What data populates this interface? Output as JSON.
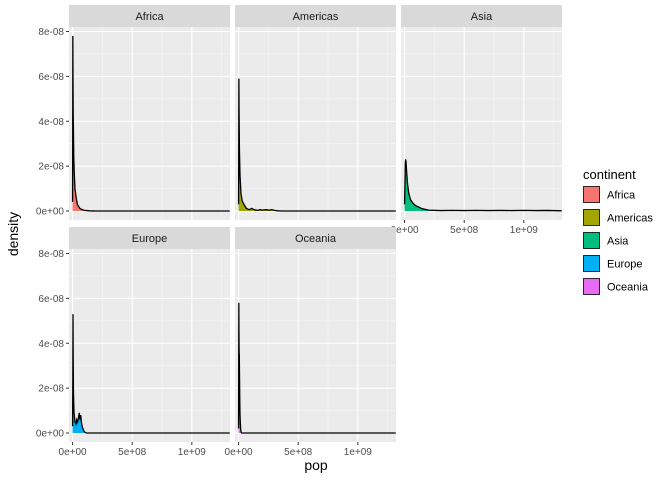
{
  "chart_data": {
    "type": "area",
    "xlabel": "pop",
    "ylabel": "density",
    "x_range": [
      -30000000,
      1320000000
    ],
    "y_range": [
      -4e-09,
      8.2e-08
    ],
    "x_ticks": [
      0,
      500000000,
      1000000000
    ],
    "x_tick_labels": [
      "0e+00",
      "5e+08",
      "1e+09"
    ],
    "y_ticks": [
      0,
      2e-08,
      4e-08,
      6e-08,
      8e-08
    ],
    "y_tick_labels": [
      "0e+00",
      "2e-08",
      "4e-08",
      "6e-08",
      "8e-08"
    ],
    "grid": true,
    "legend": {
      "title": "continent",
      "position": "right",
      "entries": [
        {
          "label": "Africa",
          "color": "#F8766D"
        },
        {
          "label": "Americas",
          "color": "#A3A500"
        },
        {
          "label": "Asia",
          "color": "#00BF7D"
        },
        {
          "label": "Europe",
          "color": "#00B0F6"
        },
        {
          "label": "Oceania",
          "color": "#E76BF3"
        }
      ]
    },
    "facets": [
      {
        "name": "Africa",
        "color": "#F8766D",
        "points": [
          [
            0,
            4e-09
          ],
          [
            1000000,
            3e-08
          ],
          [
            2000000,
            7.8e-08
          ],
          [
            3000000,
            6.5e-08
          ],
          [
            5000000,
            4.5e-08
          ],
          [
            10000000,
            2.4e-08
          ],
          [
            15000000,
            1.6e-08
          ],
          [
            20000000,
            1e-08
          ],
          [
            30000000,
            6e-09
          ],
          [
            40000000,
            3e-09
          ],
          [
            60000000,
            1.2e-09
          ],
          [
            80000000,
            6e-10
          ],
          [
            100000000,
            3e-10
          ],
          [
            120000000,
            2e-10
          ],
          [
            140000000,
            1e-10
          ],
          [
            170000000,
            4e-11
          ],
          [
            200000000,
            0
          ],
          [
            1318000000,
            0
          ]
        ]
      },
      {
        "name": "Americas",
        "color": "#A3A500",
        "points": [
          [
            0,
            3e-09
          ],
          [
            1000000,
            2e-08
          ],
          [
            2500000,
            5.9e-08
          ],
          [
            4000000,
            4.5e-08
          ],
          [
            7000000,
            2.8e-08
          ],
          [
            12000000,
            1.6e-08
          ],
          [
            20000000,
            8e-09
          ],
          [
            30000000,
            4.5e-09
          ],
          [
            45000000,
            3e-09
          ],
          [
            65000000,
            1.2e-09
          ],
          [
            90000000,
            6e-10
          ],
          [
            110000000,
            1.2e-09
          ],
          [
            130000000,
            6e-10
          ],
          [
            160000000,
            3e-10
          ],
          [
            180000000,
            6e-10
          ],
          [
            200000000,
            4e-10
          ],
          [
            230000000,
            6e-10
          ],
          [
            260000000,
            4e-10
          ],
          [
            280000000,
            6e-10
          ],
          [
            300000000,
            3e-10
          ],
          [
            330000000,
            1e-10
          ],
          [
            360000000,
            0
          ],
          [
            1318000000,
            0
          ]
        ]
      },
      {
        "name": "Asia",
        "color": "#00BF7D",
        "points": [
          [
            0,
            3e-09
          ],
          [
            3000000,
            1.2e-08
          ],
          [
            6000000,
            2.1e-08
          ],
          [
            9000000,
            2.3e-08
          ],
          [
            12000000,
            2.2e-08
          ],
          [
            18000000,
            1.7e-08
          ],
          [
            25000000,
            1.2e-08
          ],
          [
            35000000,
            8e-09
          ],
          [
            50000000,
            5e-09
          ],
          [
            70000000,
            3.5e-09
          ],
          [
            90000000,
            2.5e-09
          ],
          [
            110000000,
            2e-09
          ],
          [
            140000000,
            1.2e-09
          ],
          [
            170000000,
            8e-10
          ],
          [
            200000000,
            4e-10
          ],
          [
            300000000,
            2e-10
          ],
          [
            400000000,
            3e-10
          ],
          [
            500000000,
            2e-10
          ],
          [
            600000000,
            3e-10
          ],
          [
            700000000,
            2e-10
          ],
          [
            800000000,
            2.5e-10
          ],
          [
            900000000,
            2e-10
          ],
          [
            1000000000,
            3e-10
          ],
          [
            1100000000,
            2e-10
          ],
          [
            1200000000,
            2.5e-10
          ],
          [
            1318000000,
            1e-10
          ]
        ]
      },
      {
        "name": "Europe",
        "color": "#00B0F6",
        "points": [
          [
            0,
            3e-09
          ],
          [
            2000000,
            2.5e-08
          ],
          [
            3500000,
            5.3e-08
          ],
          [
            5000000,
            3.6e-08
          ],
          [
            7000000,
            2e-08
          ],
          [
            9000000,
            1.5e-08
          ],
          [
            12000000,
            9e-09
          ],
          [
            16000000,
            7e-09
          ],
          [
            20000000,
            5e-09
          ],
          [
            28000000,
            4e-09
          ],
          [
            35000000,
            6e-09
          ],
          [
            42000000,
            5e-09
          ],
          [
            50000000,
            7e-09
          ],
          [
            56000000,
            9e-09
          ],
          [
            62000000,
            6e-09
          ],
          [
            68000000,
            8e-09
          ],
          [
            74000000,
            5e-09
          ],
          [
            80000000,
            3e-09
          ],
          [
            90000000,
            1.5e-09
          ],
          [
            100000000,
            5e-10
          ],
          [
            115000000,
            0
          ],
          [
            1318000000,
            0
          ]
        ]
      },
      {
        "name": "Oceania",
        "color": "#E76BF3",
        "points": [
          [
            0,
            2e-09
          ],
          [
            1000000,
            2.5e-08
          ],
          [
            2000000,
            5.8e-08
          ],
          [
            3000000,
            4.6e-08
          ],
          [
            4500000,
            3.6e-08
          ],
          [
            6000000,
            3.5e-08
          ],
          [
            8000000,
            2.5e-08
          ],
          [
            10000000,
            1.5e-08
          ],
          [
            12000000,
            8e-09
          ],
          [
            15000000,
            4e-09
          ],
          [
            18000000,
            1.5e-09
          ],
          [
            21000000,
            5e-10
          ],
          [
            24000000,
            0
          ],
          [
            1318000000,
            0
          ]
        ]
      }
    ]
  }
}
